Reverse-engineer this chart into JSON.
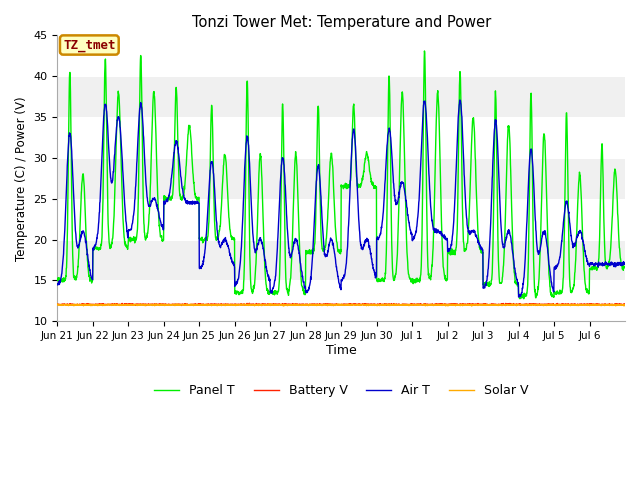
{
  "title": "Tonzi Tower Met: Temperature and Power",
  "xlabel": "Time",
  "ylabel": "Temperature (C) / Power (V)",
  "ylim": [
    10,
    45
  ],
  "yticks": [
    10,
    15,
    20,
    25,
    30,
    35,
    40,
    45
  ],
  "annotation_text": "TZ_tmet",
  "annotation_color": "#8b0000",
  "annotation_bg": "#ffffc0",
  "annotation_border": "#cc8800",
  "plot_bg": "#f0f0f0",
  "grid_color": "#ffffff",
  "line_panel_t": "#00ee00",
  "line_battery_v": "#ff2200",
  "line_air_t": "#0000cc",
  "line_solar_v": "#ffaa00",
  "legend_labels": [
    "Panel T",
    "Battery V",
    "Air T",
    "Solar V"
  ],
  "n_days": 16,
  "x_tick_labels": [
    "Jun 21",
    "Jun 22",
    "Jun 23",
    "Jun 24",
    "Jun 25",
    "Jun 26",
    "Jun 27",
    "Jun 28",
    "Jun 29",
    "Jun 30",
    "Jul 1",
    "Jul 2",
    "Jul 3",
    "Jul 4",
    "Jul 5",
    "Jul 6"
  ],
  "battery_v_val": 12.05,
  "solar_v_val": 12.0,
  "pts_per_day": 144,
  "panel_day_peaks": [
    40.5,
    42.0,
    42.5,
    38.5,
    36.5,
    39.5,
    36.5,
    36.5,
    36.5,
    40.0,
    43.0,
    40.5,
    38.0,
    38.0,
    35.5,
    31.5
  ],
  "panel_night_peaks": [
    28.0,
    38.0,
    38.0,
    34.0,
    30.5,
    30.5,
    30.5,
    30.5,
    30.5,
    38.0,
    38.0,
    35.0,
    34.0,
    33.0,
    28.0,
    28.5
  ],
  "panel_mins": [
    15.0,
    19.0,
    20.0,
    25.0,
    20.0,
    13.5,
    13.5,
    18.5,
    26.5,
    15.0,
    15.0,
    18.5,
    14.5,
    13.0,
    13.5,
    16.5
  ],
  "air_day_peaks": [
    33.0,
    36.5,
    36.5,
    32.0,
    29.5,
    32.5,
    30.0,
    29.0,
    33.5,
    33.5,
    37.0,
    37.0,
    34.5,
    31.0,
    24.5,
    17.0
  ],
  "air_night_peaks": [
    21.0,
    35.0,
    25.0,
    24.5,
    20.0,
    20.0,
    20.0,
    20.0,
    20.0,
    27.0,
    21.0,
    21.0,
    21.0,
    21.0,
    21.0,
    17.0
  ],
  "air_mins": [
    14.5,
    19.0,
    21.0,
    24.5,
    16.5,
    14.5,
    13.5,
    13.5,
    15.0,
    20.0,
    20.0,
    18.5,
    14.0,
    13.0,
    16.5,
    17.0
  ]
}
